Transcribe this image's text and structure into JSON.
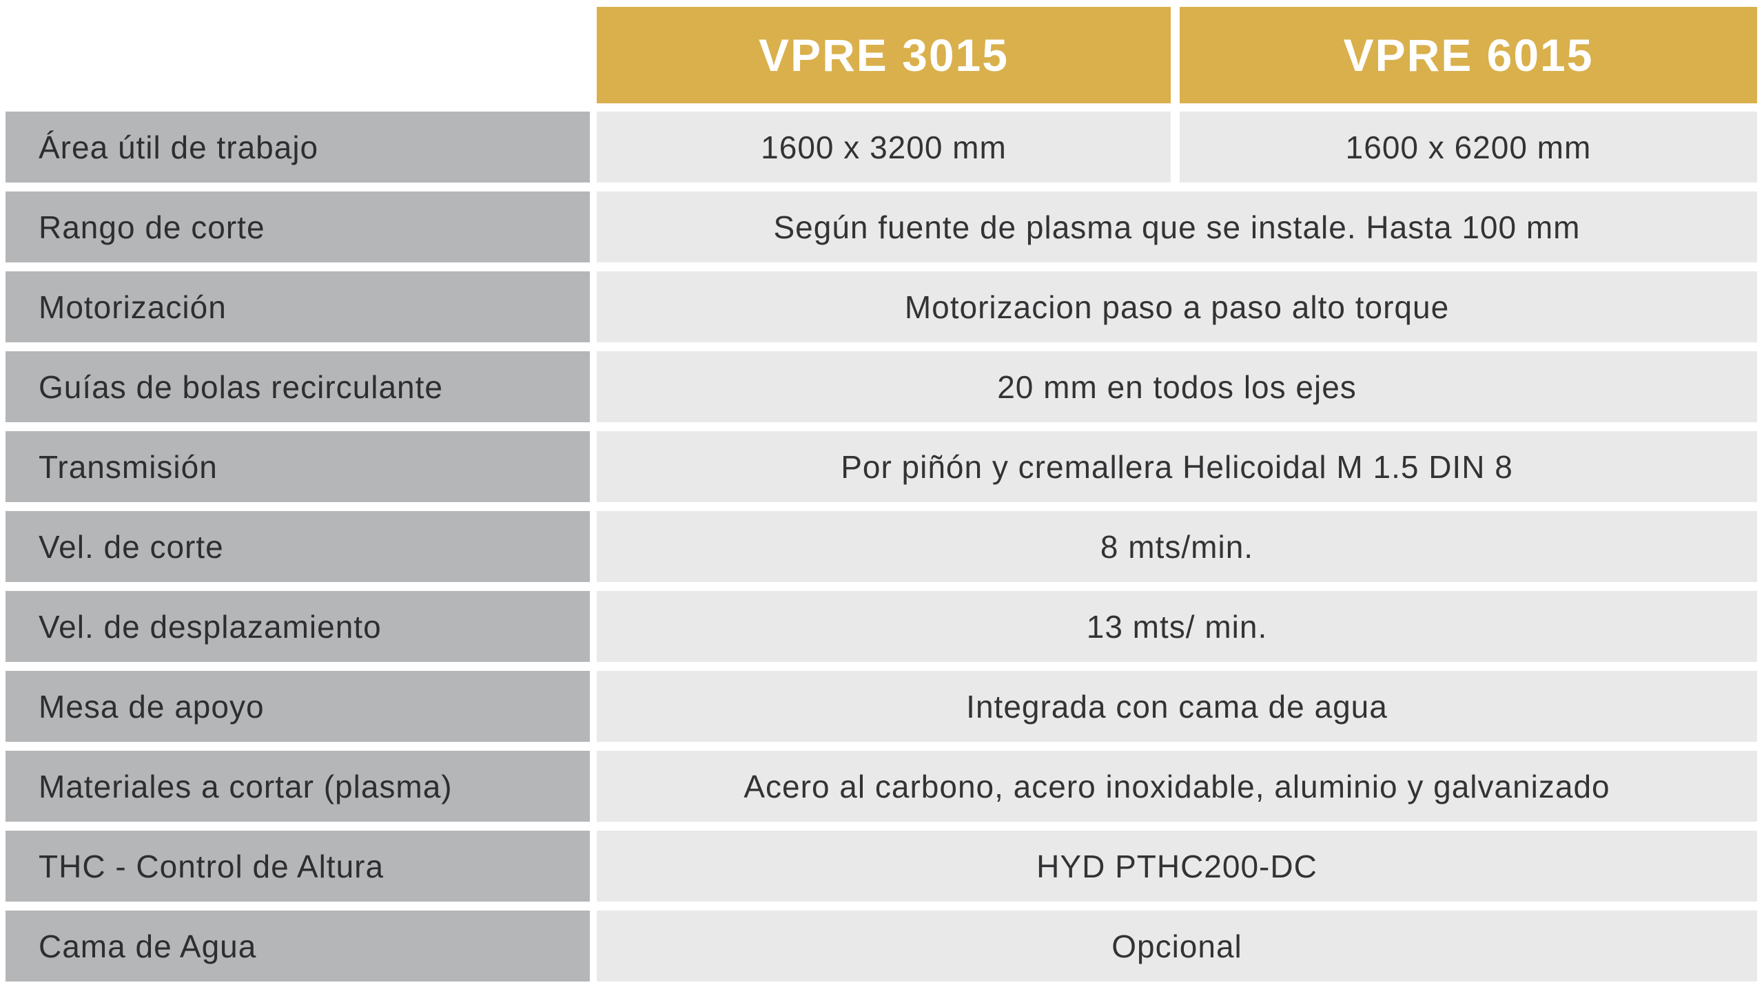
{
  "table": {
    "title_semantic": "Tabla de especificaciones VPRE",
    "header": {
      "columns": [
        "VPRE 3015",
        "VPRE 6015"
      ]
    },
    "rows": [
      {
        "label": "Área útil de trabajo",
        "values": [
          "1600 x 3200 mm",
          "1600 x 6200 mm"
        ]
      },
      {
        "label": "Rango de corte",
        "value": "Según fuente de plasma que se instale. Hasta 100 mm"
      },
      {
        "label": "Motorización",
        "value": "Motorizacion paso a paso alto torque"
      },
      {
        "label": "Guías de bolas recirculante",
        "value": "20 mm en todos los ejes"
      },
      {
        "label": "Transmisión",
        "value": "Por piñón y cremallera Helicoidal M 1.5 DIN 8"
      },
      {
        "label": "Vel. de corte",
        "value": "8 mts/min."
      },
      {
        "label": "Vel. de desplazamiento",
        "value": "13 mts/ min."
      },
      {
        "label": "Mesa de apoyo",
        "value": "Integrada con cama de agua"
      },
      {
        "label": "Materiales a cortar (plasma)",
        "value": "Acero al carbono, acero inoxidable, aluminio y galvanizado"
      },
      {
        "label": "THC - Control de Altura",
        "value": "HYD PTHC200-DC"
      },
      {
        "label": "Cama de Agua",
        "value": "Opcional"
      }
    ],
    "colors": {
      "header_background": "#d9b04c",
      "header_text": "#ffffff",
      "label_background": "#b5b6b8",
      "value_background": "#e9e9ea",
      "text": "#333335",
      "page_background": "#ffffff"
    }
  }
}
